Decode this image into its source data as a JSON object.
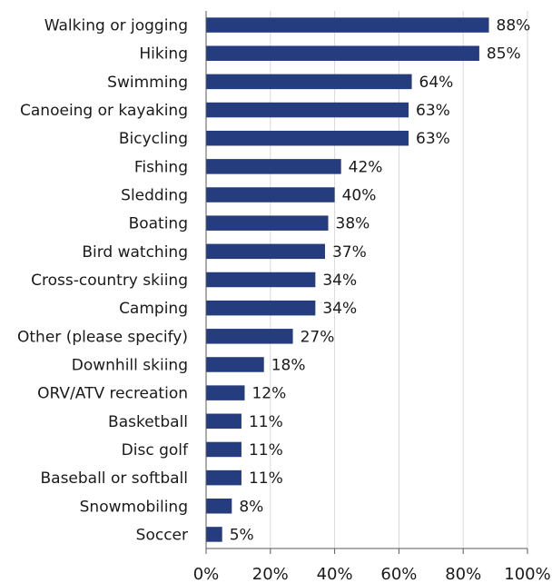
{
  "chart_data": {
    "type": "bar",
    "orientation": "horizontal",
    "title": "",
    "xlabel": "",
    "ylabel": "",
    "categories": [
      "Walking or jogging",
      "Hiking",
      "Swimming",
      "Canoeing or kayaking",
      "Bicycling",
      "Fishing",
      "Sledding",
      "Boating",
      "Bird watching",
      "Cross-country skiing",
      "Camping",
      "Other (please specify)",
      "Downhill skiing",
      "ORV/ATV recreation",
      "Basketball",
      "Disc golf",
      "Baseball or softball",
      "Snowmobiling",
      "Soccer"
    ],
    "values": [
      88,
      85,
      64,
      63,
      63,
      42,
      40,
      38,
      37,
      34,
      34,
      27,
      18,
      12,
      11,
      11,
      11,
      8,
      5
    ],
    "value_labels": [
      "88%",
      "85%",
      "64%",
      "63%",
      "63%",
      "42%",
      "40%",
      "38%",
      "37%",
      "34%",
      "34%",
      "27%",
      "18%",
      "12%",
      "11%",
      "11%",
      "11%",
      "8%",
      "5%"
    ],
    "xlim": [
      0,
      100
    ],
    "x_ticks": [
      0,
      20,
      40,
      60,
      80,
      100
    ],
    "x_tick_labels": [
      "0%",
      "20%",
      "40%",
      "60%",
      "80%",
      "100%"
    ],
    "bar_color": "#253c7e",
    "grid": true,
    "legend": "none"
  }
}
